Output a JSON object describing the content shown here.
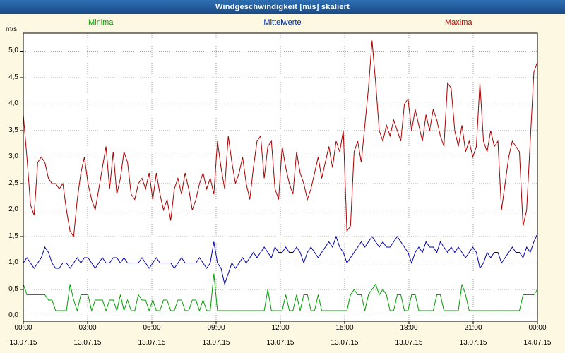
{
  "window": {
    "title": "Windgeschwindigkeit [m/s] skaliert"
  },
  "legend": {
    "items": [
      {
        "label": "Minima",
        "color": "#00a000"
      },
      {
        "label": "Mittelwerte",
        "color": "#00309c"
      },
      {
        "label": "Maxima",
        "color": "#c00000"
      }
    ]
  },
  "axes": {
    "y_unit": "m/s",
    "y_ticks": [
      "5,0",
      "4,5",
      "4,0",
      "3,5",
      "3,0",
      "2,5",
      "2,0",
      "1,5",
      "1,0",
      "0,5",
      "0,0"
    ],
    "x_time_ticks": [
      "00:00",
      "03:00",
      "06:00",
      "09:00",
      "12:00",
      "15:00",
      "18:00",
      "21:00",
      "00:00"
    ],
    "x_date_ticks": [
      "13.07.15",
      "13.07.15",
      "13.07.15",
      "13.07.15",
      "13.07.15",
      "13.07.15",
      "13.07.15",
      "13.07.15",
      "14.07.15"
    ]
  },
  "chart_data": {
    "type": "line",
    "title": "Windgeschwindigkeit [m/s] skaliert",
    "xlabel": "",
    "ylabel": "m/s",
    "x_unit": "hours",
    "x_range": [
      0,
      24
    ],
    "sample_interval_minutes": 10,
    "ylim": [
      0,
      5.4
    ],
    "grid": true,
    "legend_position": "top",
    "x_tick_labels": [
      "00:00",
      "03:00",
      "06:00",
      "09:00",
      "12:00",
      "15:00",
      "18:00",
      "21:00",
      "00:00"
    ],
    "series": [
      {
        "name": "Minima",
        "color": "#00a000",
        "values": [
          0.6,
          0.4,
          0.4,
          0.4,
          0.4,
          0.4,
          0.4,
          0.3,
          0.3,
          0.1,
          0.1,
          0.1,
          0.1,
          0.6,
          0.3,
          0.1,
          0.4,
          0.4,
          0.4,
          0.1,
          0.3,
          0.3,
          0.3,
          0.1,
          0.3,
          0.3,
          0.1,
          0.4,
          0.1,
          0.3,
          0.1,
          0.1,
          0.4,
          0.3,
          0.3,
          0.1,
          0.3,
          0.1,
          0.1,
          0.3,
          0.3,
          0.1,
          0.1,
          0.3,
          0.3,
          0.1,
          0.1,
          0.3,
          0.3,
          0.1,
          0.3,
          0.1,
          0.1,
          0.8,
          0.1,
          0.1,
          0.1,
          0.1,
          0.1,
          0.1,
          0.1,
          0.1,
          0.1,
          0.1,
          0.1,
          0.1,
          0.1,
          0.1,
          0.5,
          0.1,
          0.1,
          0.1,
          0.1,
          0.4,
          0.1,
          0.1,
          0.4,
          0.1,
          0.4,
          0.4,
          0.1,
          0.1,
          0.4,
          0.1,
          0.1,
          0.1,
          0.1,
          0.1,
          0.1,
          0.1,
          0.1,
          0.4,
          0.5,
          0.4,
          0.4,
          0.1,
          0.4,
          0.5,
          0.6,
          0.4,
          0.5,
          0.4,
          0.1,
          0.1,
          0.4,
          0.4,
          0.1,
          0.1,
          0.4,
          0.4,
          0.1,
          0.1,
          0.1,
          0.1,
          0.1,
          0.4,
          0.4,
          0.1,
          0.1,
          0.1,
          0.1,
          0.1,
          0.6,
          0.4,
          0.1,
          0.1,
          0.1,
          0.1,
          0.1,
          0.1,
          0.1,
          0.1,
          0.1,
          0.1,
          0.1,
          0.1,
          0.1,
          0.1,
          0.1,
          0.4,
          0.4,
          0.4,
          0.4,
          0.5
        ]
      },
      {
        "name": "Mittelwerte",
        "color": "#0000b4",
        "values": [
          1.0,
          1.1,
          1.0,
          0.9,
          1.0,
          1.1,
          1.3,
          1.2,
          1.0,
          0.9,
          0.9,
          1.0,
          1.0,
          0.9,
          1.0,
          1.1,
          1.0,
          1.1,
          1.1,
          1.0,
          0.9,
          1.0,
          1.1,
          1.0,
          1.0,
          1.1,
          1.1,
          1.0,
          1.1,
          1.0,
          1.0,
          1.0,
          1.0,
          1.1,
          1.0,
          0.9,
          1.0,
          1.1,
          1.0,
          1.0,
          1.0,
          1.0,
          0.9,
          1.0,
          1.1,
          1.0,
          1.0,
          1.0,
          1.0,
          1.1,
          1.0,
          0.9,
          1.0,
          1.4,
          1.0,
          0.9,
          0.6,
          0.8,
          1.0,
          0.9,
          1.0,
          1.1,
          1.0,
          1.1,
          1.2,
          1.1,
          1.2,
          1.3,
          1.2,
          1.1,
          1.3,
          1.2,
          1.2,
          1.3,
          1.2,
          1.2,
          1.3,
          1.2,
          1.0,
          1.2,
          1.3,
          1.2,
          1.1,
          1.2,
          1.3,
          1.4,
          1.3,
          1.5,
          1.3,
          1.2,
          1.0,
          1.1,
          1.2,
          1.3,
          1.4,
          1.3,
          1.4,
          1.5,
          1.4,
          1.3,
          1.4,
          1.3,
          1.3,
          1.4,
          1.5,
          1.4,
          1.3,
          1.2,
          1.0,
          1.2,
          1.3,
          1.2,
          1.4,
          1.3,
          1.3,
          1.2,
          1.4,
          1.3,
          1.2,
          1.3,
          1.2,
          1.3,
          1.2,
          1.1,
          1.2,
          1.3,
          1.2,
          0.9,
          1.0,
          1.2,
          1.1,
          1.2,
          1.2,
          1.0,
          1.1,
          1.2,
          1.3,
          1.2,
          1.2,
          1.1,
          1.3,
          1.2,
          1.4,
          1.55
        ]
      },
      {
        "name": "Maxima",
        "color": "#aa0000",
        "values": [
          3.8,
          3.0,
          2.1,
          1.9,
          2.9,
          3.0,
          2.9,
          2.6,
          2.5,
          2.5,
          2.4,
          2.5,
          2.0,
          1.6,
          1.5,
          2.2,
          2.7,
          3.0,
          2.5,
          2.2,
          2.0,
          2.4,
          2.8,
          3.2,
          2.4,
          3.1,
          2.3,
          2.6,
          3.1,
          2.9,
          2.3,
          2.2,
          2.5,
          2.6,
          2.4,
          2.7,
          2.2,
          2.7,
          2.3,
          2.0,
          2.2,
          1.8,
          2.4,
          2.6,
          2.3,
          2.7,
          2.4,
          2.0,
          2.2,
          2.5,
          2.7,
          2.4,
          2.6,
          2.3,
          3.3,
          2.8,
          2.4,
          3.4,
          2.9,
          2.5,
          2.7,
          3.0,
          2.5,
          2.2,
          2.8,
          3.3,
          3.4,
          2.6,
          3.2,
          3.3,
          2.4,
          2.2,
          3.2,
          2.8,
          2.5,
          2.3,
          3.1,
          2.7,
          2.5,
          2.2,
          2.4,
          2.7,
          3.0,
          2.6,
          2.9,
          3.2,
          2.8,
          3.3,
          3.1,
          3.5,
          1.6,
          1.7,
          3.1,
          3.3,
          2.9,
          3.6,
          4.3,
          5.2,
          4.4,
          3.5,
          3.3,
          3.6,
          3.4,
          3.7,
          3.5,
          3.3,
          4.0,
          4.1,
          3.5,
          3.9,
          3.6,
          3.3,
          3.8,
          3.5,
          3.9,
          3.7,
          3.4,
          3.2,
          4.4,
          4.3,
          3.5,
          3.2,
          3.6,
          3.1,
          3.3,
          3.0,
          3.2,
          4.4,
          3.3,
          3.1,
          3.5,
          3.2,
          3.3,
          2.0,
          2.5,
          3.0,
          3.3,
          3.2,
          3.1,
          1.7,
          2.0,
          3.3,
          4.6,
          4.8
        ]
      }
    ]
  }
}
